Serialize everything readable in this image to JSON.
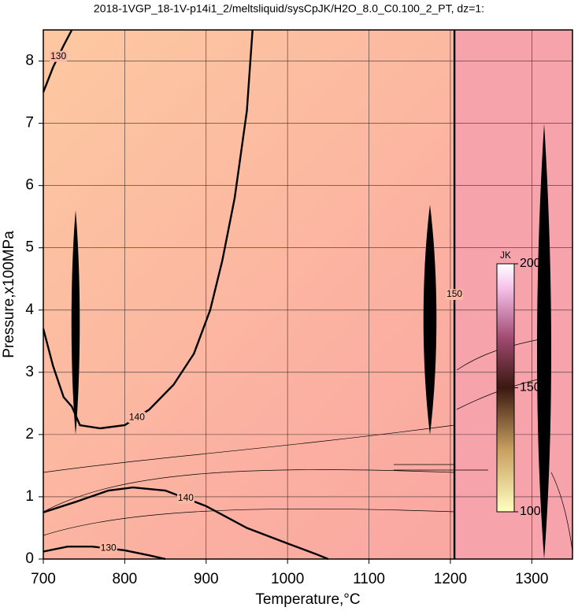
{
  "chart_data": {
    "type": "contour",
    "title": "2018-1VGP_18-1V-p14i1_2/meltsliquid/sysCpJK/H2O_8.0_C0.100_2_PT, dz=1:",
    "x_label": "Temperature,°C",
    "y_label": "Pressure,x100MPa",
    "xlim": [
      700,
      1350
    ],
    "ylim": [
      0,
      8.5
    ],
    "xticks": [
      700,
      800,
      900,
      1000,
      1100,
      1200,
      1300
    ],
    "yticks": [
      0,
      1,
      2,
      3,
      4,
      5,
      6,
      7,
      8
    ],
    "grid": true,
    "contours": [
      {
        "level": 140,
        "x": [
          700,
          712,
          725,
          735,
          745,
          770,
          800,
          830,
          860,
          885,
          905,
          920,
          935,
          950,
          957
        ],
        "y": [
          3.7,
          3.1,
          2.6,
          2.45,
          2.15,
          2.1,
          2.15,
          2.4,
          2.8,
          3.3,
          4.0,
          4.8,
          5.8,
          7.2,
          8.5
        ]
      },
      {
        "level": 140,
        "x": [
          700,
          740,
          780,
          810,
          850,
          900,
          950,
          1000,
          1035,
          1050
        ],
        "y": [
          0.75,
          0.92,
          1.1,
          1.15,
          1.1,
          0.85,
          0.5,
          0.25,
          0.08,
          0
        ]
      },
      {
        "level": 130,
        "x": [
          700,
          730,
          760,
          800,
          830,
          850
        ],
        "y": [
          0.12,
          0.2,
          0.2,
          0.14,
          0.06,
          0
        ]
      },
      {
        "level": 130,
        "x": [
          700,
          712,
          725,
          735
        ],
        "y": [
          7.5,
          7.9,
          8.25,
          8.5
        ]
      },
      {
        "level": 150,
        "x": [
          1205,
          1205
        ],
        "y": [
          0,
          8.5
        ]
      }
    ],
    "colorbar": {
      "label": "JK",
      "lim": [
        100,
        200
      ],
      "ticks": [
        100,
        150,
        200
      ]
    }
  }
}
